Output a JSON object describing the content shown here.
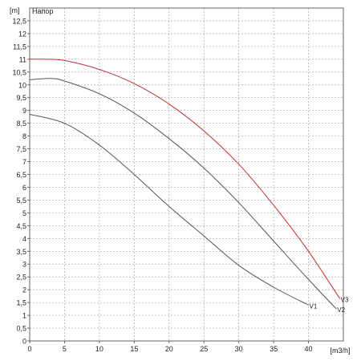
{
  "chart_data": {
    "type": "line",
    "title": "Напор",
    "ylabel": "[m]",
    "xlabel": "[m3/h]",
    "xlim": [
      0,
      45
    ],
    "ylim": [
      0,
      13
    ],
    "x_ticks": [
      0,
      5,
      10,
      15,
      20,
      25,
      30,
      35,
      40
    ],
    "y_ticks": [
      "0",
      "0,5",
      "1",
      "1,5",
      "2",
      "2,5",
      "3",
      "3,5",
      "4",
      "4,5",
      "5",
      "5,5",
      "6",
      "6,5",
      "7",
      "7,5",
      "8",
      "8,5",
      "9",
      "9,5",
      "10",
      "10,5",
      "11",
      "11,5",
      "12",
      "12,5"
    ],
    "grid": true,
    "series": [
      {
        "name": "V1",
        "color": "#555555",
        "x": [
          0,
          5,
          10,
          15,
          20,
          25,
          30,
          35,
          40
        ],
        "y": [
          8.85,
          8.5,
          7.65,
          6.5,
          5.25,
          4.1,
          2.95,
          2.1,
          1.4
        ]
      },
      {
        "name": "V2",
        "color": "#555555",
        "x": [
          0,
          3,
          5,
          10,
          15,
          20,
          25,
          30,
          35,
          40,
          44
        ],
        "y": [
          10.2,
          10.25,
          10.15,
          9.65,
          8.9,
          7.9,
          6.75,
          5.4,
          3.9,
          2.4,
          1.25
        ]
      },
      {
        "name": "V3",
        "color": "#c03030",
        "x": [
          0,
          2,
          5,
          10,
          15,
          20,
          25,
          30,
          35,
          40,
          44.5
        ],
        "y": [
          11.0,
          11.0,
          10.95,
          10.6,
          10.05,
          9.25,
          8.2,
          6.9,
          5.3,
          3.5,
          1.65
        ]
      }
    ]
  }
}
